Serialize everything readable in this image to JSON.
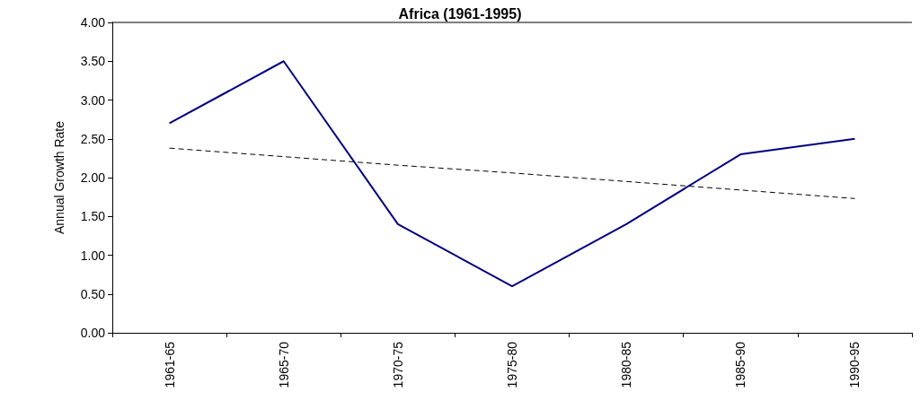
{
  "chart_data": {
    "type": "line",
    "title": "Africa (1961-1995)",
    "ylabel": "Annual Growth Rate",
    "categories": [
      "1961-65",
      "1965-70",
      "1970-75",
      "1975-80",
      "1980-85",
      "1985-90",
      "1990-95"
    ],
    "series": [
      {
        "color": "#000080",
        "values": [
          2.7,
          3.5,
          1.4,
          0.6,
          1.4,
          2.3,
          2.5
        ]
      },
      {
        "color": "#000000",
        "line_style": "dashed",
        "values": [
          2.38,
          2.27,
          2.16,
          2.06,
          1.95,
          1.84,
          1.73
        ]
      }
    ],
    "ylim": [
      0,
      4
    ],
    "yticks": [
      {
        "value": 0,
        "label": "0.00"
      },
      {
        "value": 0.5,
        "label": "0.50"
      },
      {
        "value": 1,
        "label": "1.00"
      },
      {
        "value": 1.5,
        "label": "1.50"
      },
      {
        "value": 2,
        "label": "2.00"
      },
      {
        "value": 2.5,
        "label": "2.50"
      },
      {
        "value": 3,
        "label": "3.00"
      },
      {
        "value": 3.5,
        "label": "3.50"
      },
      {
        "value": 4,
        "label": "4.00"
      }
    ],
    "grid": false,
    "marker": "none"
  }
}
